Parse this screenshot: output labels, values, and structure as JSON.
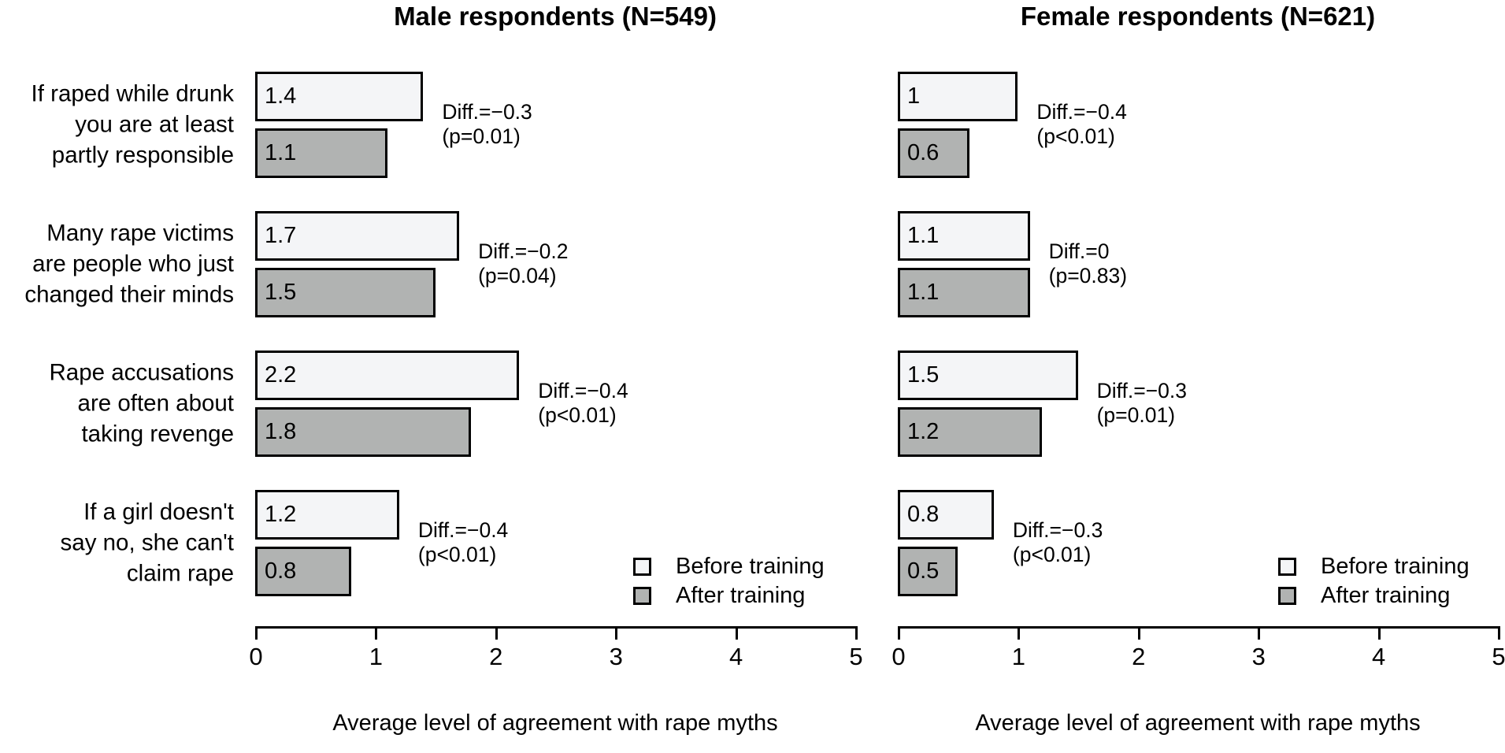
{
  "chart_data": {
    "type": "bar",
    "orientation": "horizontal",
    "xlabel": "Average level of agreement with rape myths",
    "xlim": [
      0,
      5
    ],
    "xticks": [
      "0",
      "1",
      "2",
      "3",
      "4",
      "5"
    ],
    "grid": false,
    "colors": {
      "before": "#f4f5f7",
      "after": "#b1b3b2",
      "border": "#000000"
    },
    "legend": {
      "position": "bottom-right",
      "entries": [
        {
          "name": "Before training",
          "colorKey": "before"
        },
        {
          "name": "After training",
          "colorKey": "after"
        }
      ]
    },
    "categories": [
      {
        "lines": [
          "If raped while drunk",
          "you are at least",
          "partly responsible"
        ]
      },
      {
        "lines": [
          "Many rape victims",
          "are people who just",
          "changed their minds"
        ]
      },
      {
        "lines": [
          "Rape accusations",
          "are often about",
          "taking revenge"
        ]
      },
      {
        "lines": [
          "If a girl doesn't",
          "say no, she can't",
          "claim rape"
        ]
      }
    ],
    "panels": [
      {
        "title": "Male respondents (N=549)",
        "series": [
          {
            "name": "Before training",
            "values": [
              1.4,
              1.7,
              2.2,
              1.2
            ],
            "labels": [
              "1.4",
              "1.7",
              "2.2",
              "1.2"
            ]
          },
          {
            "name": "After training",
            "values": [
              1.1,
              1.5,
              1.8,
              0.8
            ],
            "labels": [
              "1.1",
              "1.5",
              "1.8",
              "0.8"
            ]
          }
        ],
        "annotations": [
          {
            "line1": "Diff.=−0.3",
            "line2": "(p=0.01)"
          },
          {
            "line1": "Diff.=−0.2",
            "line2": "(p=0.04)"
          },
          {
            "line1": "Diff.=−0.4",
            "line2": "(p<0.01)"
          },
          {
            "line1": "Diff.=−0.4",
            "line2": "(p<0.01)"
          }
        ]
      },
      {
        "title": "Female respondents (N=621)",
        "series": [
          {
            "name": "Before training",
            "values": [
              1,
              1.1,
              1.5,
              0.8
            ],
            "labels": [
              "1",
              "1.1",
              "1.5",
              "0.8"
            ]
          },
          {
            "name": "After training",
            "values": [
              0.6,
              1.1,
              1.2,
              0.5
            ],
            "labels": [
              "0.6",
              "1.1",
              "1.2",
              "0.5"
            ]
          }
        ],
        "annotations": [
          {
            "line1": "Diff.=−0.4",
            "line2": "(p<0.01)"
          },
          {
            "line1": "Diff.=0",
            "line2": "(p=0.83)"
          },
          {
            "line1": "Diff.=−0.3",
            "line2": "(p=0.01)"
          },
          {
            "line1": "Diff.=−0.3",
            "line2": "(p<0.01)"
          }
        ]
      }
    ]
  }
}
